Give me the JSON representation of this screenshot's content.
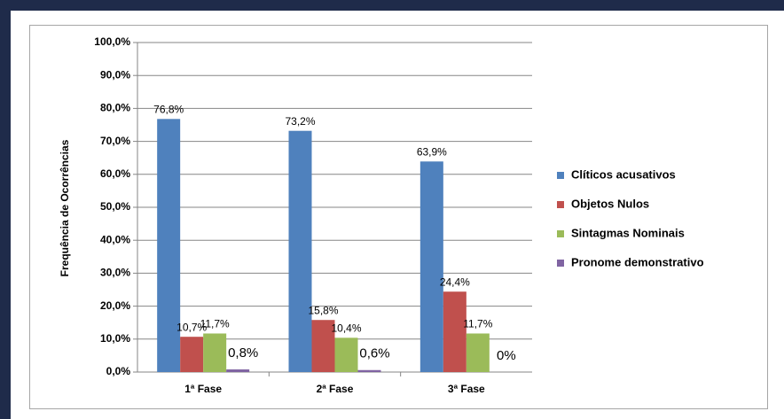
{
  "chart_data": {
    "type": "bar",
    "y_label": "Frequência de Ocorrências",
    "categories": [
      "1ª Fase",
      "2ª Fase",
      "3ª Fase"
    ],
    "series": [
      {
        "name": "Clíticos acusativos",
        "color": "#4f81bd",
        "values": [
          76.8,
          73.2,
          63.9
        ],
        "value_labels": [
          "76,8%",
          "73,2%",
          "63,9%"
        ]
      },
      {
        "name": "Objetos Nulos",
        "color": "#c0504d",
        "values": [
          10.7,
          15.8,
          24.4
        ],
        "value_labels": [
          "10,7%",
          "15,8%",
          "24,4%"
        ]
      },
      {
        "name": "Sintagmas Nominais",
        "color": "#9bbb59",
        "values": [
          11.7,
          10.4,
          11.7
        ],
        "value_labels": [
          "11,7%",
          "10,4%",
          "11,7%"
        ]
      },
      {
        "name": "Pronome demonstrativo",
        "color": "#8064a2",
        "values": [
          0.8,
          0.6,
          0
        ],
        "value_labels": [
          "0,8%",
          "0,6%",
          "0%"
        ]
      }
    ],
    "ylim": [
      0,
      100
    ],
    "yticks": [
      {
        "value": 0,
        "label": "0,0%"
      },
      {
        "value": 10,
        "label": "10,0%"
      },
      {
        "value": 20,
        "label": "20,0%"
      },
      {
        "value": 30,
        "label": "30,0%"
      },
      {
        "value": 40,
        "label": "40,0%"
      },
      {
        "value": 50,
        "label": "50,0%"
      },
      {
        "value": 60,
        "label": "60,0%"
      },
      {
        "value": 70,
        "label": "70,0%"
      },
      {
        "value": 80,
        "label": "80,0%"
      },
      {
        "value": 90,
        "label": "90,0%"
      },
      {
        "value": 100,
        "label": "100,0%"
      }
    ],
    "grid": true,
    "legend": "right"
  }
}
